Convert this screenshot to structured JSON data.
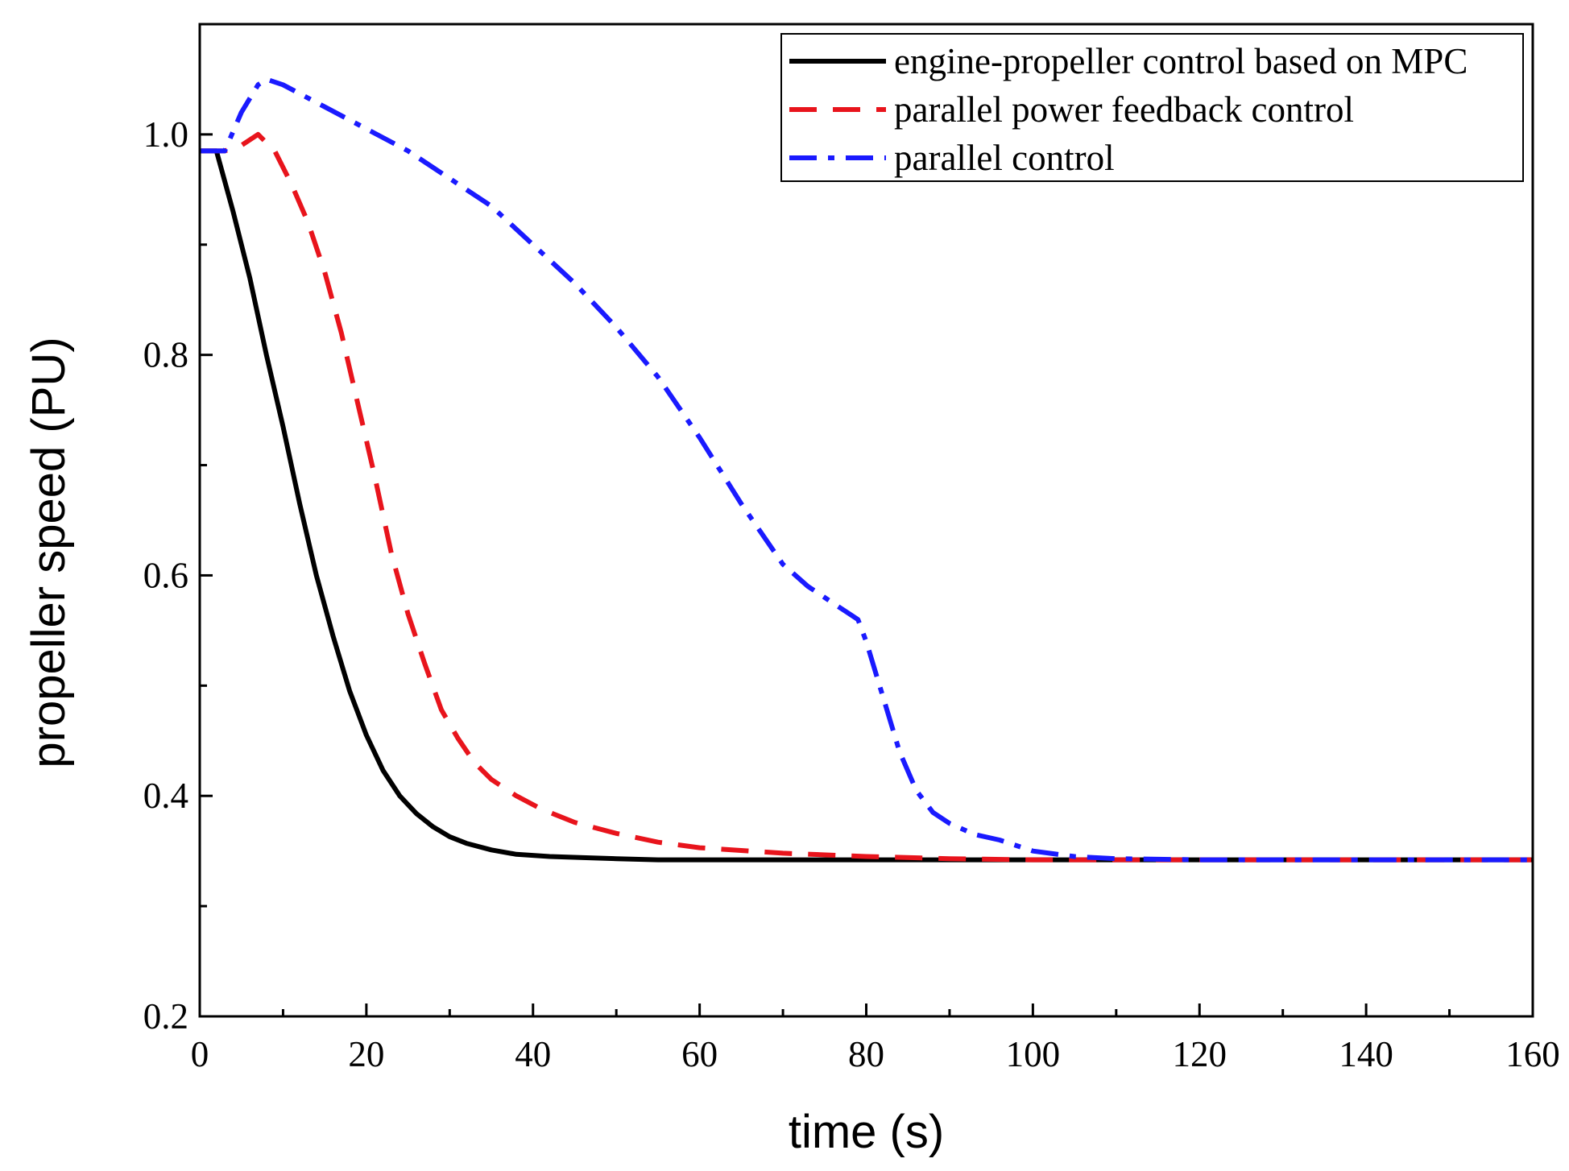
{
  "chart_data": {
    "type": "line",
    "title": "",
    "xlabel": "time (s)",
    "ylabel": "propeller speed (PU)",
    "xlim": [
      0,
      160
    ],
    "ylim": [
      0.2,
      1.1
    ],
    "x_ticks": [
      0,
      20,
      40,
      60,
      80,
      100,
      120,
      140,
      160
    ],
    "x_tick_labels": [
      "0",
      "20",
      "40",
      "60",
      "80",
      "100",
      "120",
      "140",
      "160"
    ],
    "y_ticks": [
      0.2,
      0.4,
      0.6,
      0.8,
      1.0
    ],
    "y_tick_labels": [
      "0.2",
      "0.4",
      "0.6",
      "0.8",
      "1.0"
    ],
    "legend_position": "top-right",
    "grid": false,
    "series": [
      {
        "name": "engine-propeller control based on MPC",
        "color": "#000000",
        "style": "solid",
        "x": [
          0,
          2,
          4,
          6,
          8,
          10,
          12,
          14,
          16,
          18,
          20,
          22,
          24,
          26,
          28,
          30,
          32,
          35,
          38,
          42,
          46,
          50,
          55,
          60,
          80,
          100,
          120,
          140,
          160
        ],
        "y": [
          0.985,
          0.985,
          0.93,
          0.87,
          0.8,
          0.735,
          0.665,
          0.6,
          0.545,
          0.495,
          0.455,
          0.423,
          0.4,
          0.384,
          0.372,
          0.363,
          0.357,
          0.351,
          0.347,
          0.345,
          0.344,
          0.343,
          0.342,
          0.342,
          0.342,
          0.342,
          0.342,
          0.342,
          0.342
        ]
      },
      {
        "name": "parallel power feedback control",
        "color": "#e8141c",
        "style": "dashed",
        "x": [
          0,
          3,
          5,
          7,
          9,
          11,
          13,
          15,
          17,
          19,
          21,
          23,
          25,
          27,
          29,
          31,
          33,
          35,
          38,
          41,
          45,
          50,
          55,
          60,
          70,
          80,
          90,
          100,
          120,
          140,
          160
        ],
        "y": [
          0.985,
          0.985,
          0.99,
          1.0,
          0.985,
          0.955,
          0.92,
          0.875,
          0.82,
          0.755,
          0.69,
          0.62,
          0.565,
          0.52,
          0.478,
          0.452,
          0.43,
          0.415,
          0.4,
          0.388,
          0.376,
          0.366,
          0.358,
          0.353,
          0.348,
          0.345,
          0.343,
          0.342,
          0.342,
          0.342,
          0.342
        ]
      },
      {
        "name": "parallel control",
        "color": "#1a1aff",
        "style": "dashdot",
        "x": [
          0,
          3,
          5,
          7,
          8,
          10,
          15,
          20,
          25,
          30,
          35,
          40,
          45,
          50,
          55,
          60,
          65,
          70,
          73,
          76,
          79,
          80,
          82,
          84,
          86,
          88,
          90,
          93,
          96,
          100,
          105,
          110,
          120,
          140,
          160
        ],
        "y": [
          0.985,
          0.985,
          1.02,
          1.045,
          1.05,
          1.045,
          1.025,
          1.005,
          0.985,
          0.96,
          0.935,
          0.9,
          0.865,
          0.825,
          0.78,
          0.725,
          0.665,
          0.61,
          0.59,
          0.575,
          0.56,
          0.54,
          0.49,
          0.44,
          0.405,
          0.385,
          0.375,
          0.365,
          0.36,
          0.35,
          0.345,
          0.343,
          0.342,
          0.342,
          0.342
        ]
      }
    ]
  }
}
